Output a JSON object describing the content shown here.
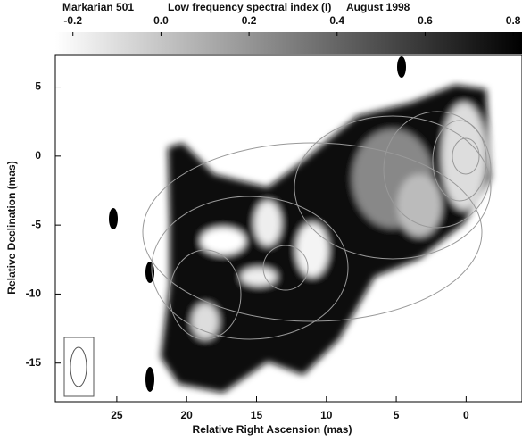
{
  "chart_data": {
    "type": "image-map",
    "titles": [
      "Markarian 501",
      "Low frequency spectral index (I)",
      "August 1998"
    ],
    "xlabel": "Relative Right Ascension (mas)",
    "ylabel": "Relative Declination (mas)",
    "xlim": [
      29.4,
      -4
    ],
    "ylim": [
      -17.8,
      7.3
    ],
    "xticks": [
      25,
      20,
      15,
      10,
      5,
      0
    ],
    "yticks": [
      5,
      0,
      -5,
      -10,
      -15
    ],
    "colorbar": {
      "lim": [
        -0.24,
        0.82
      ],
      "ticks": [
        -0.2,
        {
          "value": 0,
          "label": "0.0"
        },
        0.2,
        0.4,
        0.6,
        0.8
      ]
    }
  }
}
